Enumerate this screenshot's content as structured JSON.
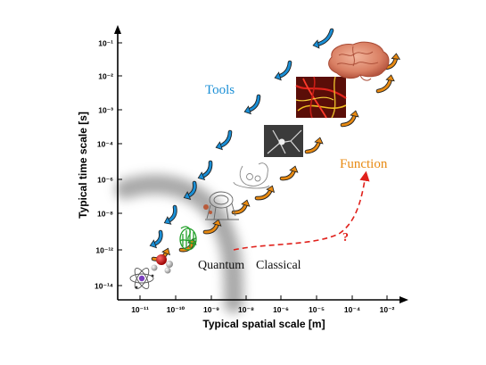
{
  "axes": {
    "xlabel": "Typical spatial scale [m]",
    "ylabel": "Typical time scale [s]",
    "xticks": [
      "10⁻¹¹",
      "10⁻¹⁰",
      "10⁻⁹",
      "10⁻⁸",
      "10⁻⁶",
      "10⁻⁵",
      "10⁻⁴",
      "10⁻²"
    ],
    "yticks": [
      "10⁻¹",
      "10⁻²",
      "10⁻³",
      "10⁻⁴",
      "10⁻⁶",
      "10⁻⁸",
      "10⁻¹²",
      "10⁻¹⁴"
    ]
  },
  "labels": {
    "tools": "Tools",
    "function": "Function",
    "quantum": "Quantum",
    "classical": "Classical",
    "question": "?"
  },
  "colors": {
    "tools": "#1a8fd6",
    "function": "#e88a12",
    "question": "#e0201b",
    "boundary": "#9a9a9a"
  },
  "scale_items": [
    "atom",
    "molecule",
    "protein",
    "molecular-machine",
    "synapse",
    "neuron",
    "neural-tissue",
    "brain"
  ]
}
